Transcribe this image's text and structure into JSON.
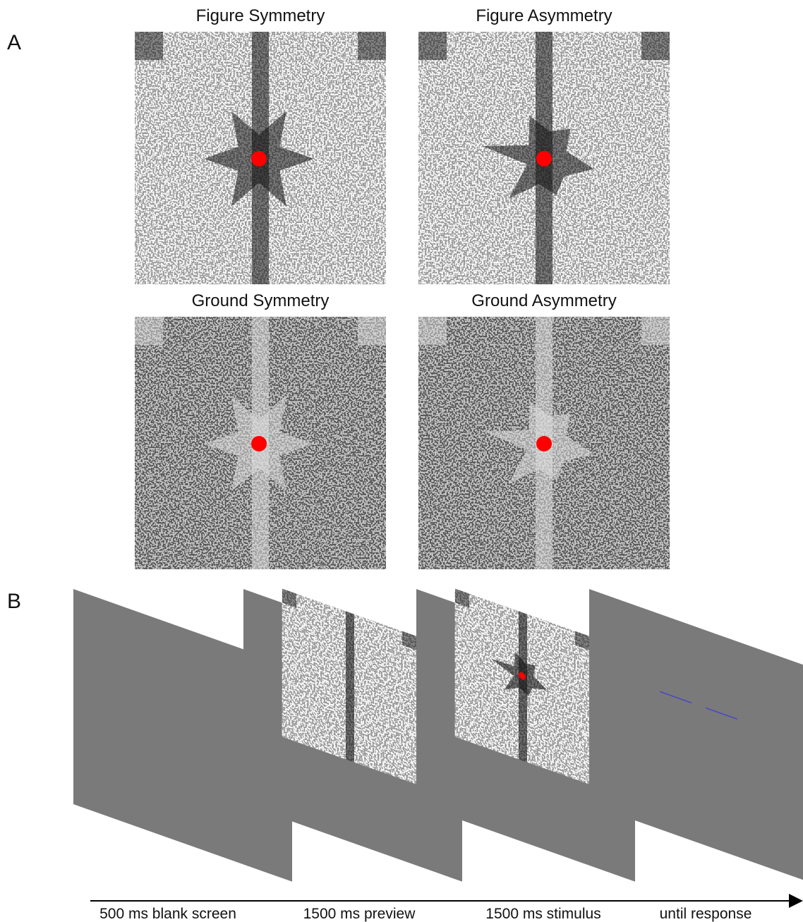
{
  "panel_a": {
    "label": "A",
    "panels": [
      {
        "title": "Figure Symmetry"
      },
      {
        "title": "Figure Asymmetry"
      },
      {
        "title": "Ground Symmetry"
      },
      {
        "title": "Ground Asymmetry"
      }
    ]
  },
  "panel_b": {
    "label": "B",
    "timeline": [
      "500 ms blank screen",
      "1500 ms preview",
      "1500 ms stimulus",
      "until response"
    ]
  }
}
